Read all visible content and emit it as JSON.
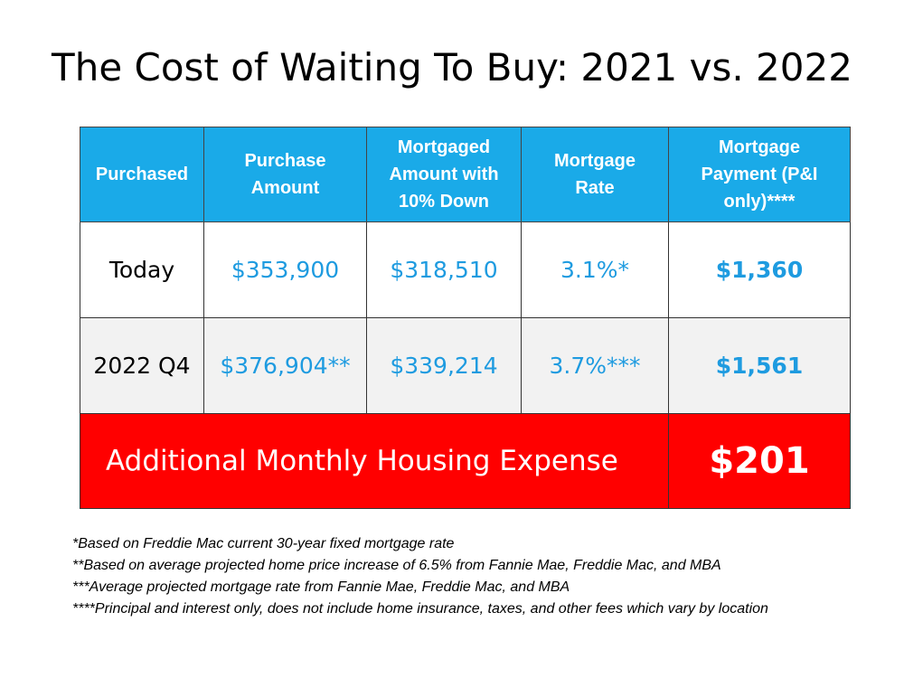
{
  "title": "The Cost of Waiting To Buy: 2021 vs. 2022",
  "table": {
    "headers": [
      "Purchased",
      "Purchase Amount",
      "Mortgaged Amount with 10% Down",
      "Mortgage Rate",
      "Mortgage Payment (P&I only)****"
    ],
    "rows": [
      {
        "purchased": "Today",
        "purchase_amount": "$353,900",
        "mortgaged_amount": "$318,510",
        "rate": "3.1%*",
        "payment": "$1,360"
      },
      {
        "purchased": "2022 Q4",
        "purchase_amount": "$376,904**",
        "mortgaged_amount": "$339,214",
        "rate": "3.7%***",
        "payment": "$1,561"
      }
    ],
    "additional": {
      "label": "Additional Monthly Housing Expense",
      "value": "$201"
    }
  },
  "footnotes": [
    "*Based on Freddie Mac current 30-year fixed mortgage rate",
    "**Based on average projected home price increase of 6.5% from Fannie Mae, Freddie Mac, and MBA",
    "***Average projected mortgage rate from Fannie Mae, Freddie Mac, and MBA",
    "****Principal and interest only, does not include home insurance, taxes, and other fees which vary by location"
  ],
  "colors": {
    "header_bg": "#1aaae8",
    "value_text": "#1e9be0",
    "extra_bg": "#ff0000",
    "row2_bg": "#f2f2f2"
  }
}
